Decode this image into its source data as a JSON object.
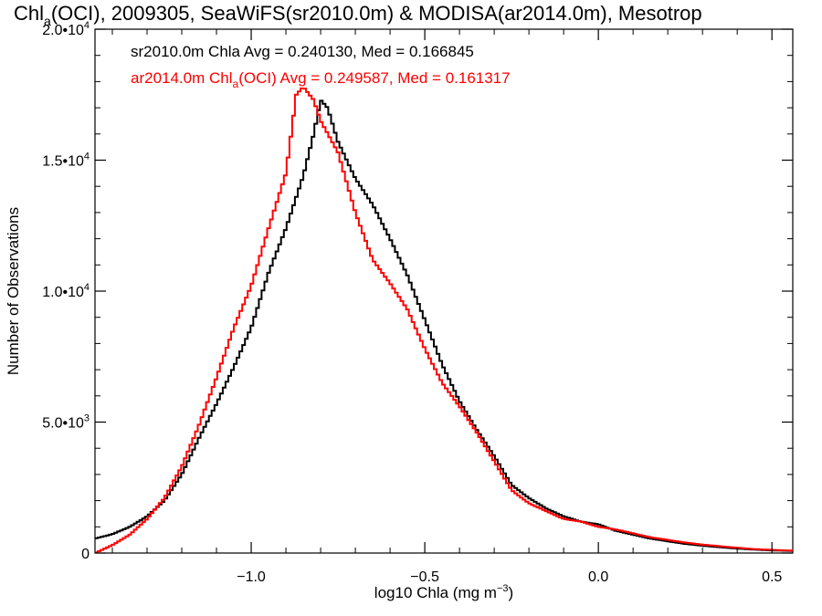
{
  "chart_data": {
    "type": "histogram",
    "title": {
      "prefix": "Chl",
      "sub": "a",
      "suffix": "(OCI), 2009305, SeaWiFS(sr2010.0m) & MODISA(ar2014.0m), Mesotrop"
    },
    "xlabel": {
      "prefix": "log10 Chla (mg m",
      "sup": "−3",
      "suffix": ")"
    },
    "ylabel": "Number of Observations",
    "xlim": [
      -1.45,
      0.56
    ],
    "ylim": [
      0,
      20000
    ],
    "x_ticks": [
      {
        "value": -1.0,
        "label": "−1.0"
      },
      {
        "value": -0.5,
        "label": "−0.5"
      },
      {
        "value": 0.0,
        "label": "0.0"
      },
      {
        "value": 0.5,
        "label": "0.5"
      }
    ],
    "y_ticks": [
      {
        "value": 0,
        "base": "0",
        "exp": ""
      },
      {
        "value": 5000,
        "base": "5.0•10",
        "exp": "3"
      },
      {
        "value": 10000,
        "base": "1.0•10",
        "exp": "4"
      },
      {
        "value": 15000,
        "base": "1.5•10",
        "exp": "4"
      },
      {
        "value": 20000,
        "base": "2.0•10",
        "exp": "4"
      }
    ],
    "grid": false,
    "legend_position": "top-left",
    "series": [
      {
        "name": "sr2010.0m Chla Avg = 0.240130, Med = 0.166845",
        "legend": {
          "prefix": "sr2010.0m Chla Avg = 0.240130, Med = 0.166845",
          "sub": "",
          "suffix": ""
        },
        "color": "#000000",
        "points": [
          [
            -1.45,
            550
          ],
          [
            -1.4,
            720
          ],
          [
            -1.35,
            1000
          ],
          [
            -1.3,
            1400
          ],
          [
            -1.25,
            2000
          ],
          [
            -1.2,
            3000
          ],
          [
            -1.15,
            4400
          ],
          [
            -1.1,
            5700
          ],
          [
            -1.05,
            7100
          ],
          [
            -1.0,
            8600
          ],
          [
            -0.95,
            10700
          ],
          [
            -0.9,
            12400
          ],
          [
            -0.85,
            14400
          ],
          [
            -0.82,
            16000
          ],
          [
            -0.8,
            17300
          ],
          [
            -0.78,
            17000
          ],
          [
            -0.75,
            15700
          ],
          [
            -0.7,
            14300
          ],
          [
            -0.65,
            13300
          ],
          [
            -0.6,
            12000
          ],
          [
            -0.55,
            10600
          ],
          [
            -0.5,
            8900
          ],
          [
            -0.45,
            7200
          ],
          [
            -0.4,
            5800
          ],
          [
            -0.35,
            4700
          ],
          [
            -0.3,
            3700
          ],
          [
            -0.25,
            2600
          ],
          [
            -0.2,
            2100
          ],
          [
            -0.15,
            1700
          ],
          [
            -0.1,
            1400
          ],
          [
            -0.05,
            1200
          ],
          [
            0.0,
            1100
          ],
          [
            0.05,
            850
          ],
          [
            0.1,
            700
          ],
          [
            0.15,
            550
          ],
          [
            0.2,
            450
          ],
          [
            0.25,
            350
          ],
          [
            0.3,
            280
          ],
          [
            0.35,
            220
          ],
          [
            0.4,
            170
          ],
          [
            0.45,
            130
          ],
          [
            0.5,
            100
          ],
          [
            0.56,
            80
          ]
        ]
      },
      {
        "name": "ar2014.0m Chla(OCI) Avg = 0.249587, Med = 0.161317",
        "legend": {
          "prefix": "ar2014.0m Chl",
          "sub": "a",
          "suffix": "(OCI) Avg = 0.249587, Med = 0.161317"
        },
        "color": "#ff0000",
        "points": [
          [
            -1.45,
            0
          ],
          [
            -1.4,
            300
          ],
          [
            -1.35,
            700
          ],
          [
            -1.3,
            1300
          ],
          [
            -1.25,
            2100
          ],
          [
            -1.2,
            3300
          ],
          [
            -1.15,
            4900
          ],
          [
            -1.1,
            6700
          ],
          [
            -1.05,
            8600
          ],
          [
            -1.0,
            10200
          ],
          [
            -0.95,
            12400
          ],
          [
            -0.9,
            14500
          ],
          [
            -0.87,
            17500
          ],
          [
            -0.85,
            17800
          ],
          [
            -0.82,
            17300
          ],
          [
            -0.8,
            16500
          ],
          [
            -0.75,
            15300
          ],
          [
            -0.7,
            13000
          ],
          [
            -0.65,
            11200
          ],
          [
            -0.6,
            10300
          ],
          [
            -0.55,
            9300
          ],
          [
            -0.5,
            7800
          ],
          [
            -0.45,
            6500
          ],
          [
            -0.4,
            5600
          ],
          [
            -0.35,
            4600
          ],
          [
            -0.3,
            3500
          ],
          [
            -0.25,
            2400
          ],
          [
            -0.2,
            1900
          ],
          [
            -0.15,
            1600
          ],
          [
            -0.1,
            1300
          ],
          [
            -0.05,
            1200
          ],
          [
            0.0,
            1000
          ],
          [
            0.05,
            900
          ],
          [
            0.1,
            750
          ],
          [
            0.15,
            600
          ],
          [
            0.2,
            500
          ],
          [
            0.25,
            400
          ],
          [
            0.3,
            320
          ],
          [
            0.35,
            260
          ],
          [
            0.4,
            200
          ],
          [
            0.45,
            150
          ],
          [
            0.5,
            120
          ],
          [
            0.56,
            90
          ]
        ]
      }
    ]
  }
}
